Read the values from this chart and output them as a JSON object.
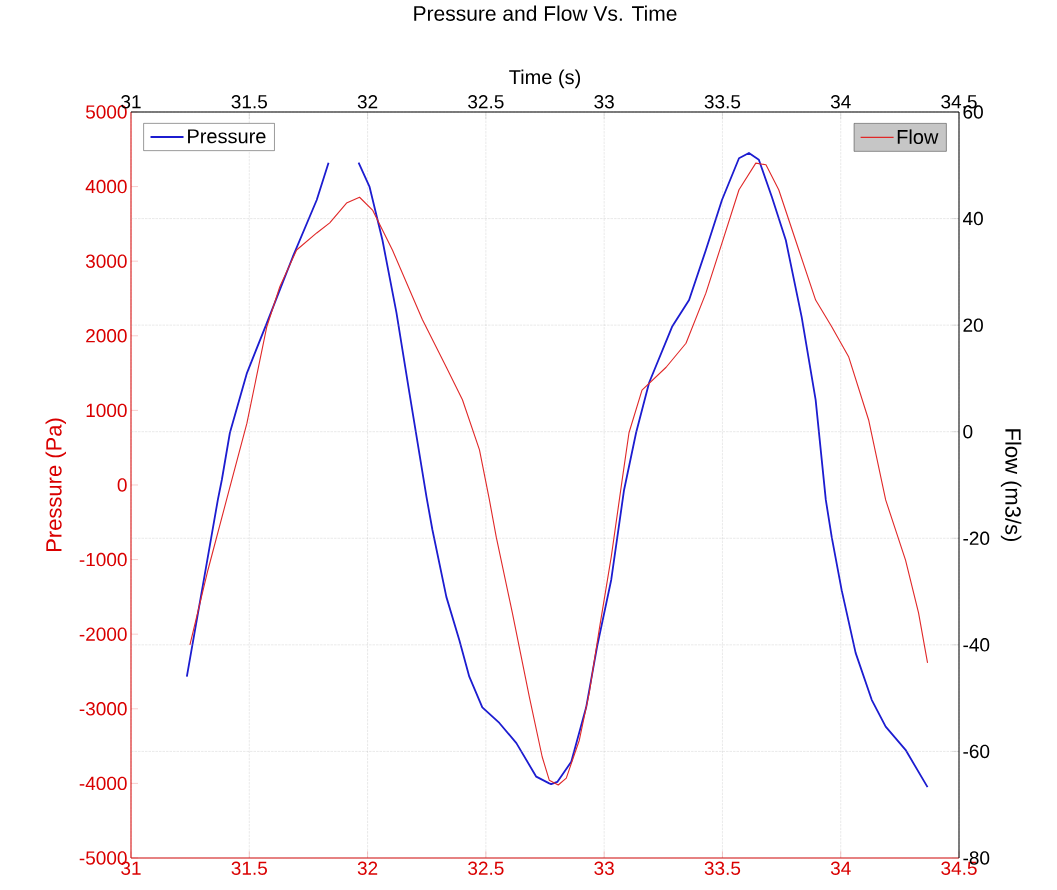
{
  "chart_data": {
    "type": "line",
    "title": "Pressure and Flow Vs. Time",
    "x2label": "Time (s)",
    "ylabel": "Pressure (Pa)",
    "y2label": "Flow (m3/s)",
    "xlim": [
      31,
      34.5
    ],
    "xticks": [
      31,
      31.5,
      32,
      32.5,
      33,
      33.5,
      34,
      34.5
    ],
    "x2lim": [
      31,
      34.5
    ],
    "x2ticks": [
      31,
      31.5,
      32,
      32.5,
      33,
      33.5,
      34,
      34.5
    ],
    "ylim": [
      -5000,
      5000
    ],
    "yticks": [
      -5000,
      -4000,
      -3000,
      -2000,
      -1000,
      0,
      1000,
      2000,
      3000,
      4000,
      5000
    ],
    "y2lim": [
      -80,
      60
    ],
    "y2ticks": [
      -80,
      -60,
      -40,
      -20,
      0,
      20,
      40,
      60
    ],
    "grid": true,
    "legend": "top",
    "series": [
      {
        "name": "Pressure",
        "color": "#1c1cd0",
        "axis": "y",
        "x": [
          31.236,
          31.32,
          31.367,
          31.384,
          31.418,
          31.49,
          31.574,
          31.684,
          31.785,
          31.835,
          31.9,
          31.962,
          32.008,
          32.063,
          32.122,
          32.177,
          32.249,
          32.274,
          32.333,
          32.388,
          32.43,
          32.485,
          32.557,
          32.629,
          32.713,
          32.768,
          32.776,
          32.802,
          32.861,
          32.924,
          32.97,
          33.03,
          33.084,
          33.135,
          33.19,
          33.287,
          33.359,
          33.43,
          33.498,
          33.57,
          33.612,
          33.654,
          33.709,
          33.768,
          33.835,
          33.894,
          33.937,
          33.962,
          34.004,
          34.063,
          34.131,
          34.19,
          34.274,
          34.367
        ],
        "values": [
          -2570,
          -1050,
          -200,
          70,
          700,
          1500,
          2170,
          3060,
          3820,
          4320,
          null,
          4320,
          4000,
          3280,
          2310,
          1230,
          -160,
          -600,
          -1500,
          -2080,
          -2570,
          -2980,
          -3190,
          -3460,
          -3910,
          -4000,
          -4010,
          -3980,
          -3710,
          -2980,
          -2170,
          -1270,
          -70,
          700,
          1370,
          2120,
          2480,
          3150,
          3820,
          4380,
          4450,
          4360,
          3860,
          3280,
          2250,
          1140,
          -200,
          -700,
          -1410,
          -2250,
          -2880,
          -3240,
          -3550,
          -4050
        ]
      },
      {
        "name": "Flow",
        "color": "#e02828",
        "axis": "y2",
        "x": [
          31.249,
          31.325,
          31.418,
          31.49,
          31.574,
          31.629,
          31.7,
          31.785,
          31.84,
          31.911,
          31.966,
          32.021,
          32.105,
          32.232,
          32.333,
          32.401,
          32.473,
          32.515,
          32.544,
          32.612,
          32.684,
          32.738,
          32.768,
          32.806,
          32.84,
          32.895,
          32.937,
          32.979,
          33.03,
          33.076,
          33.105,
          33.16,
          33.262,
          33.346,
          33.43,
          33.498,
          33.57,
          33.641,
          33.684,
          33.738,
          33.823,
          33.894,
          33.962,
          34.034,
          34.118,
          34.19,
          34.274,
          34.329,
          34.367
        ],
        "values": [
          -40,
          -26,
          -10.4,
          1.6,
          19.7,
          27.2,
          34.1,
          37.3,
          39.2,
          42.9,
          44,
          41.6,
          34.1,
          21,
          12.1,
          6,
          -3.4,
          -12.8,
          -19.8,
          -34,
          -49.8,
          -61,
          -65.4,
          -66.3,
          -65,
          -57.9,
          -49,
          -37.2,
          -23.5,
          -9.1,
          -0.2,
          7.8,
          12.1,
          16.6,
          26,
          35.4,
          45.4,
          50.4,
          50.1,
          45.4,
          34.1,
          24.7,
          19.7,
          14,
          2.2,
          -12.8,
          -24.1,
          -34,
          -43.4
        ]
      }
    ]
  }
}
